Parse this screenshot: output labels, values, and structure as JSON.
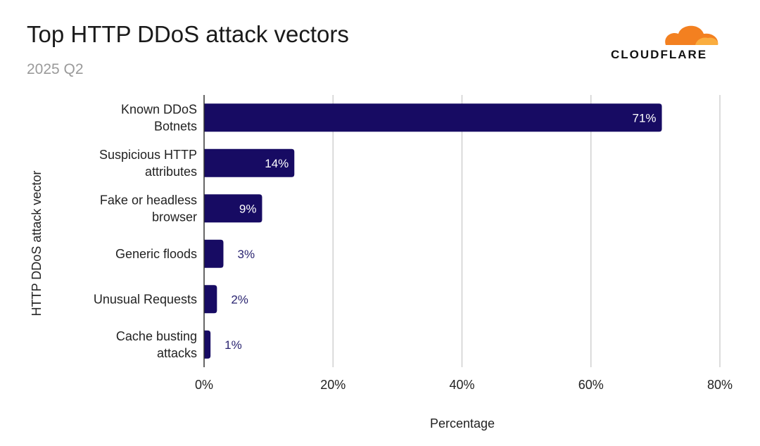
{
  "brand": {
    "name": "CLOUDFLARE",
    "accent": "#f38020"
  },
  "chart_data": {
    "type": "bar",
    "orientation": "horizontal",
    "title": "Top HTTP DDoS attack vectors",
    "subtitle": "2025 Q2",
    "xlabel": "Percentage",
    "ylabel": "HTTP DDoS attack vector",
    "categories": [
      [
        "Known DDoS",
        "Botnets"
      ],
      [
        "Suspicious HTTP",
        "attributes"
      ],
      [
        "Fake or headless",
        "browser"
      ],
      [
        "Generic floods"
      ],
      [
        "Unusual Requests"
      ],
      [
        "Cache busting",
        "attacks"
      ]
    ],
    "values": [
      71,
      14,
      9,
      3,
      2,
      1
    ],
    "data_labels": [
      "71%",
      "14%",
      "9%",
      "3%",
      "2%",
      "1%"
    ],
    "xlim": [
      0,
      80
    ],
    "xticks": [
      "0%",
      "20%",
      "40%",
      "60%",
      "80%"
    ],
    "grid": true,
    "bar_color": "#170b63"
  }
}
